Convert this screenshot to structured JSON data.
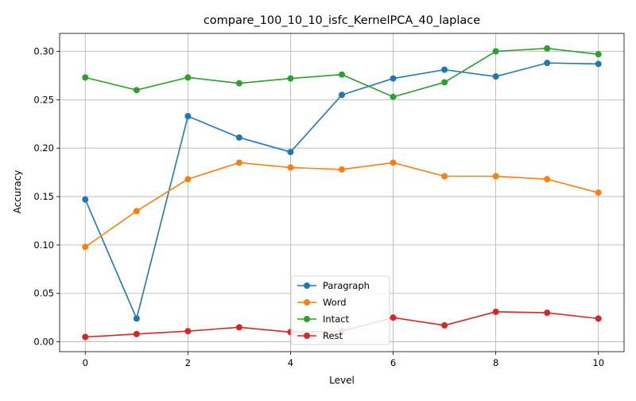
{
  "chart_data": {
    "type": "line",
    "title": "compare_100_10_10_isfc_KernelPCA_40_laplace",
    "xlabel": "Level",
    "ylabel": "Accuracy",
    "x": [
      0,
      1,
      2,
      3,
      4,
      5,
      6,
      7,
      8,
      9,
      10
    ],
    "xlim": [
      -0.5,
      10.5
    ],
    "ylim": [
      -0.0102,
      0.3185
    ],
    "xticks": [
      0,
      2,
      4,
      6,
      8,
      10
    ],
    "xtick_labels": [
      "0",
      "2",
      "4",
      "6",
      "8",
      "10"
    ],
    "yticks": [
      0.0,
      0.05,
      0.1,
      0.15,
      0.2,
      0.25,
      0.3
    ],
    "ytick_labels": [
      "0.00",
      "0.05",
      "0.10",
      "0.15",
      "0.20",
      "0.25",
      "0.30"
    ],
    "grid": true,
    "legend_position": "lower center",
    "series": [
      {
        "name": "Paragraph",
        "color": "#1f77b4",
        "values": [
          0.147,
          0.024,
          0.233,
          0.211,
          0.196,
          0.255,
          0.272,
          0.281,
          0.274,
          0.288,
          0.287
        ]
      },
      {
        "name": "Word",
        "color": "#ff7f0e",
        "values": [
          0.098,
          0.135,
          0.168,
          0.185,
          0.18,
          0.178,
          0.185,
          0.171,
          0.171,
          0.168,
          0.154
        ]
      },
      {
        "name": "Intact",
        "color": "#2ca02c",
        "values": [
          0.273,
          0.26,
          0.273,
          0.267,
          0.272,
          0.276,
          0.253,
          0.268,
          0.3,
          0.303,
          0.297
        ]
      },
      {
        "name": "Rest",
        "color": "#d62728",
        "values": [
          0.005,
          0.008,
          0.011,
          0.015,
          0.01,
          0.011,
          0.025,
          0.017,
          0.031,
          0.03,
          0.024
        ]
      }
    ]
  }
}
